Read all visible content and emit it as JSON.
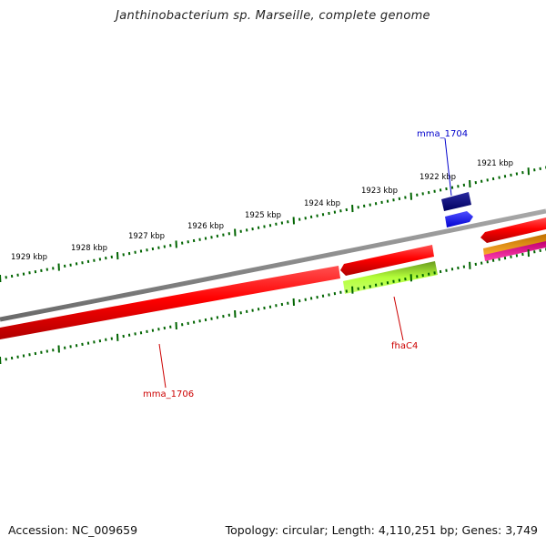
{
  "header": {
    "title": "Janthinobacterium sp. Marseille, complete genome"
  },
  "footer": {
    "accession": "Accession: NC_009659",
    "summary": "Topology: circular; Length: 4,110,251 bp; Genes: 3,749"
  },
  "scale_labels": [
    "1929 kbp",
    "1928 kbp",
    "1927 kbp",
    "1926 kbp",
    "1925 kbp",
    "1924 kbp",
    "1923 kbp",
    "1922 kbp",
    "1921 kbp"
  ],
  "gene_labels": {
    "mma_1704": "mma_1704",
    "fhaC4": "fhaC4",
    "mma_1706": "mma_1706"
  },
  "colors": {
    "backbone": "#808080",
    "cds_red": "#ff0000",
    "mma_1704_dark": "#000080",
    "mma_1704_blue": "#0000ff",
    "fhaC4_green": "#adff2f",
    "orange": "#ffa500",
    "magenta": "#ff1493",
    "ticks": "#006400",
    "label_red": "#cc0000",
    "label_blue": "#0000cc"
  }
}
